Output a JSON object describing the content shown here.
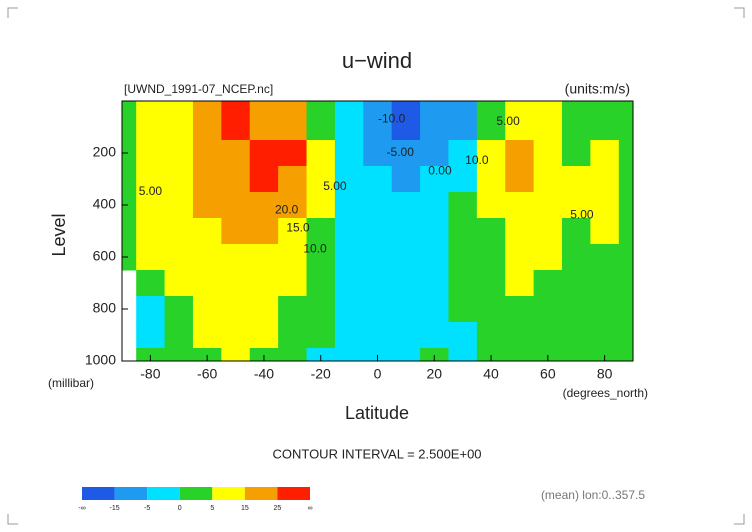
{
  "chart_data": {
    "type": "contour",
    "title": "u−wind",
    "subtitle": "[UWND_1991-07_NCEP.nc]",
    "units": "(units:m/s)",
    "x_label": "Latitude",
    "x_unit": "(degrees_north)",
    "y_label": "Level",
    "y_unit": "(millibar)",
    "contour_interval": "CONTOUR INTERVAL = 2.500E+00",
    "note": "(mean) lon:0..357.5",
    "x": [
      -90,
      -80,
      -70,
      -60,
      -50,
      -40,
      -30,
      -20,
      -10,
      0,
      10,
      20,
      30,
      40,
      50,
      60,
      70,
      80,
      90
    ],
    "levels": [
      100,
      200,
      300,
      400,
      500,
      600,
      700,
      800,
      900,
      1000
    ],
    "values": [
      [
        3,
        6,
        12,
        18,
        26,
        24,
        20,
        4,
        -3,
        -12,
        -18,
        -14,
        -6,
        3,
        8,
        6,
        4,
        3,
        2
      ],
      [
        4,
        8,
        14,
        20,
        24,
        30,
        34,
        10,
        -2,
        -8,
        -10,
        -6,
        -2,
        10,
        24,
        10,
        4,
        8,
        3
      ],
      [
        4,
        8,
        14,
        18,
        22,
        26,
        24,
        8,
        -1,
        -5,
        -6,
        -4,
        -1,
        8,
        18,
        9,
        5,
        9,
        3
      ],
      [
        3,
        7,
        13,
        16,
        20,
        20,
        16,
        5,
        -1,
        -4,
        -4,
        -3,
        0,
        6,
        13,
        8,
        5,
        7,
        3
      ],
      [
        2,
        6,
        12,
        14,
        17,
        16,
        12,
        4,
        -1,
        -3,
        -3,
        -2,
        0,
        4,
        10,
        7,
        4,
        6,
        2
      ],
      [
        1,
        5,
        10,
        12,
        13,
        12,
        8,
        3,
        -1,
        -3,
        -2,
        -2,
        0,
        3,
        8,
        5,
        3,
        4,
        2
      ],
      [
        null,
        2,
        8,
        10,
        10,
        9,
        5,
        2,
        -1,
        -3,
        -2,
        -2,
        0,
        2,
        6,
        4,
        2,
        3,
        2
      ],
      [
        null,
        -1,
        4,
        8,
        8,
        7,
        3,
        1,
        -2,
        -3,
        -2,
        -1,
        0,
        2,
        4,
        3,
        2,
        2,
        1
      ],
      [
        null,
        -1,
        2,
        5,
        6,
        5,
        2,
        0,
        -3,
        -4,
        -2,
        -1,
        -1,
        1,
        2,
        2,
        2,
        1,
        1
      ],
      [
        null,
        0,
        1,
        3,
        5,
        4,
        1,
        -1,
        -4,
        -3,
        -2,
        1,
        -2,
        1,
        1,
        1,
        1,
        1,
        1
      ]
    ],
    "xlim": [
      -90,
      90
    ],
    "ylim": [
      1000,
      0
    ],
    "xticks": [
      -80,
      -60,
      -40,
      -20,
      0,
      20,
      40,
      60,
      80
    ],
    "yticks": [
      200,
      400,
      600,
      800,
      1000
    ],
    "colorbar": {
      "labels": [
        "-∞",
        -15,
        -5,
        0,
        5,
        15,
        25,
        "∞"
      ],
      "colors": [
        "#1e5ae6",
        "#1e9bf0",
        "#00e1ff",
        "#28d228",
        "#ffff00",
        "#f5a000",
        "#ff1e00"
      ]
    },
    "annotations": [
      {
        "text": "5.00",
        "x": -80,
        "y": 350
      },
      {
        "text": "20.0",
        "x": -32,
        "y": 420
      },
      {
        "text": "15.0",
        "x": -28,
        "y": 490
      },
      {
        "text": "10.0",
        "x": -22,
        "y": 570
      },
      {
        "text": "5.00",
        "x": -15,
        "y": 330
      },
      {
        "text": "0.00",
        "x": 22,
        "y": 270
      },
      {
        "text": "-5.00",
        "x": 8,
        "y": 200
      },
      {
        "text": "-10.0",
        "x": 5,
        "y": 70
      },
      {
        "text": "10.0",
        "x": 35,
        "y": 230
      },
      {
        "text": "5.00",
        "x": 46,
        "y": 80
      },
      {
        "text": "5.00",
        "x": 72,
        "y": 440
      }
    ]
  }
}
